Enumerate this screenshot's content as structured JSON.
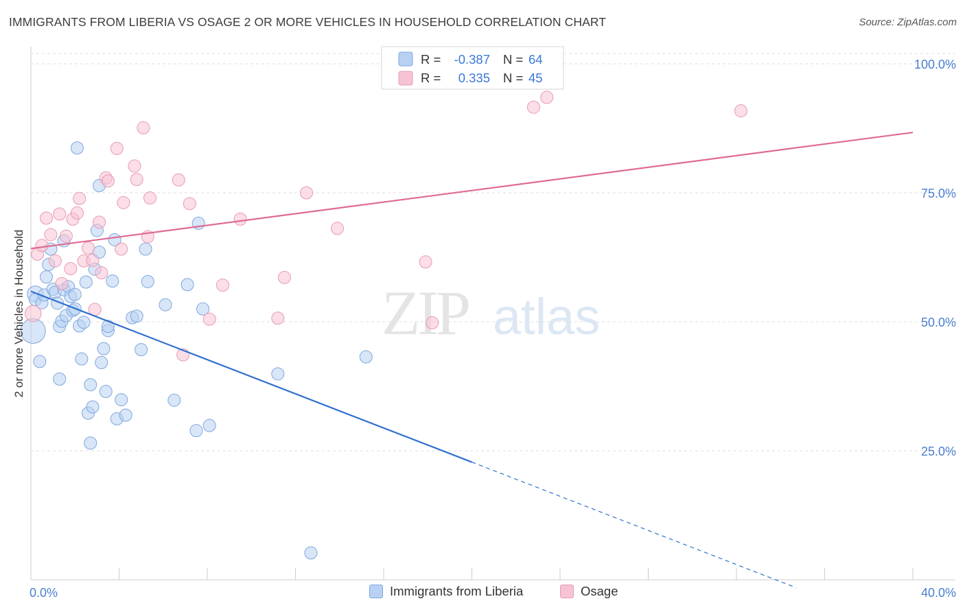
{
  "header": {
    "title": "IMMIGRANTS FROM LIBERIA VS OSAGE 2 OR MORE VEHICLES IN HOUSEHOLD CORRELATION CHART",
    "source": "Source: ZipAtlas.com"
  },
  "watermark": {
    "zip": "ZIP",
    "atlas": "atlas"
  },
  "colors": {
    "blue_fill": "#b8d1f3",
    "blue_stroke": "#7ea6dd",
    "blue_line": "#2f6fcf",
    "pink_fill": "#f7c3d4",
    "pink_stroke": "#e79ab4",
    "pink_line": "#e06a93",
    "axis_label": "#4a7fcf",
    "grid": "#dddddd"
  },
  "legend": {
    "rows": [
      {
        "r_label": "R =",
        "r_value": "-0.387",
        "n_label": "N =",
        "n_value": "64"
      },
      {
        "r_label": "R =",
        "r_value": "0.335",
        "n_label": "N =",
        "n_value": "45"
      }
    ]
  },
  "chart_data": {
    "type": "scatter",
    "xlabel": "",
    "ylabel": "2 or more Vehicles in Household",
    "xlim": [
      0,
      40
    ],
    "ylim": [
      0,
      102
    ],
    "x_tick_labels": [
      {
        "value": 0,
        "label": "0.0%"
      },
      {
        "value": 40,
        "label": "40.0%"
      }
    ],
    "y_tick_labels": [
      {
        "value": 25,
        "label": "25.0%"
      },
      {
        "value": 50,
        "label": "50.0%"
      },
      {
        "value": 75,
        "label": "75.0%"
      },
      {
        "value": 100,
        "label": "100.0%"
      }
    ],
    "grid": true,
    "legend_position": "top-center",
    "series": [
      {
        "name": "Immigrants from Liberia",
        "color": "blue",
        "trend": {
          "x0": 0,
          "y0": 55.9,
          "x1": 20,
          "y1": 22.8,
          "dashed_to_x": 34.7
        },
        "points": [
          {
            "x": 0.1,
            "y": 48.2,
            "r": 2
          },
          {
            "x": 0.2,
            "y": 55.4,
            "r": 1.3
          },
          {
            "x": 0.2,
            "y": 54.3
          },
          {
            "x": 0.4,
            "y": 42.3
          },
          {
            "x": 0.5,
            "y": 53.7
          },
          {
            "x": 0.6,
            "y": 55.2
          },
          {
            "x": 0.7,
            "y": 58.7
          },
          {
            "x": 0.8,
            "y": 61.1
          },
          {
            "x": 0.9,
            "y": 64.1
          },
          {
            "x": 1.0,
            "y": 56.3
          },
          {
            "x": 1.1,
            "y": 55.7
          },
          {
            "x": 1.2,
            "y": 53.6
          },
          {
            "x": 1.3,
            "y": 38.9
          },
          {
            "x": 1.3,
            "y": 49.1
          },
          {
            "x": 1.4,
            "y": 50.1
          },
          {
            "x": 1.5,
            "y": 65.7
          },
          {
            "x": 1.5,
            "y": 56.2
          },
          {
            "x": 1.6,
            "y": 51.2
          },
          {
            "x": 1.7,
            "y": 56.8
          },
          {
            "x": 1.8,
            "y": 54.9
          },
          {
            "x": 1.9,
            "y": 52.2
          },
          {
            "x": 2.0,
            "y": 55.3
          },
          {
            "x": 2.0,
            "y": 52.5
          },
          {
            "x": 2.1,
            "y": 83.7
          },
          {
            "x": 2.2,
            "y": 49.2
          },
          {
            "x": 2.3,
            "y": 42.8
          },
          {
            "x": 2.4,
            "y": 49.9
          },
          {
            "x": 2.5,
            "y": 57.7
          },
          {
            "x": 2.6,
            "y": 32.3
          },
          {
            "x": 2.7,
            "y": 26.5
          },
          {
            "x": 2.7,
            "y": 37.8
          },
          {
            "x": 2.8,
            "y": 33.5
          },
          {
            "x": 2.9,
            "y": 60.2
          },
          {
            "x": 3.0,
            "y": 67.7
          },
          {
            "x": 3.1,
            "y": 63.5
          },
          {
            "x": 3.2,
            "y": 42.1
          },
          {
            "x": 3.1,
            "y": 76.4
          },
          {
            "x": 3.3,
            "y": 44.8
          },
          {
            "x": 3.4,
            "y": 36.5
          },
          {
            "x": 3.5,
            "y": 48.3
          },
          {
            "x": 3.5,
            "y": 49.1
          },
          {
            "x": 3.7,
            "y": 57.9
          },
          {
            "x": 3.8,
            "y": 65.9
          },
          {
            "x": 3.9,
            "y": 31.2
          },
          {
            "x": 4.1,
            "y": 34.9
          },
          {
            "x": 4.3,
            "y": 31.9
          },
          {
            "x": 4.6,
            "y": 50.8
          },
          {
            "x": 4.8,
            "y": 51.1
          },
          {
            "x": 5.0,
            "y": 44.6
          },
          {
            "x": 5.2,
            "y": 64.1
          },
          {
            "x": 5.3,
            "y": 57.8
          },
          {
            "x": 6.1,
            "y": 53.3
          },
          {
            "x": 6.5,
            "y": 34.8
          },
          {
            "x": 7.1,
            "y": 57.2
          },
          {
            "x": 7.5,
            "y": 28.9
          },
          {
            "x": 7.6,
            "y": 69.1
          },
          {
            "x": 7.8,
            "y": 52.5
          },
          {
            "x": 8.1,
            "y": 29.9
          },
          {
            "x": 11.2,
            "y": 39.9
          },
          {
            "x": 12.7,
            "y": 5.2
          },
          {
            "x": 15.2,
            "y": 43.2
          }
        ]
      },
      {
        "name": "Osage",
        "color": "pink",
        "trend": {
          "x0": 0,
          "y0": 64.2,
          "x1": 40,
          "y1": 86.7
        },
        "points": [
          {
            "x": 0.1,
            "y": 51.6,
            "r": 1.3
          },
          {
            "x": 0.3,
            "y": 63.1
          },
          {
            "x": 0.5,
            "y": 64.8
          },
          {
            "x": 0.7,
            "y": 70.1
          },
          {
            "x": 0.9,
            "y": 66.9
          },
          {
            "x": 1.1,
            "y": 61.8
          },
          {
            "x": 1.3,
            "y": 70.9
          },
          {
            "x": 1.4,
            "y": 57.4
          },
          {
            "x": 1.6,
            "y": 66.6
          },
          {
            "x": 1.8,
            "y": 60.3
          },
          {
            "x": 1.9,
            "y": 69.9
          },
          {
            "x": 2.1,
            "y": 71.1
          },
          {
            "x": 2.2,
            "y": 73.9
          },
          {
            "x": 2.4,
            "y": 61.8
          },
          {
            "x": 2.6,
            "y": 64.3
          },
          {
            "x": 2.8,
            "y": 61.9
          },
          {
            "x": 2.9,
            "y": 52.4
          },
          {
            "x": 3.1,
            "y": 69.3
          },
          {
            "x": 3.2,
            "y": 59.5
          },
          {
            "x": 3.4,
            "y": 77.9
          },
          {
            "x": 3.5,
            "y": 77.3
          },
          {
            "x": 3.9,
            "y": 83.6
          },
          {
            "x": 4.1,
            "y": 64.1
          },
          {
            "x": 4.2,
            "y": 73.1
          },
          {
            "x": 4.7,
            "y": 80.2
          },
          {
            "x": 4.8,
            "y": 77.6
          },
          {
            "x": 5.1,
            "y": 87.6
          },
          {
            "x": 5.3,
            "y": 66.5
          },
          {
            "x": 5.4,
            "y": 74.0
          },
          {
            "x": 6.7,
            "y": 77.5
          },
          {
            "x": 6.9,
            "y": 43.6
          },
          {
            "x": 7.2,
            "y": 72.9
          },
          {
            "x": 8.1,
            "y": 50.5
          },
          {
            "x": 8.7,
            "y": 57.1
          },
          {
            "x": 9.5,
            "y": 69.9
          },
          {
            "x": 11.2,
            "y": 50.7
          },
          {
            "x": 11.5,
            "y": 58.6
          },
          {
            "x": 12.5,
            "y": 75.0
          },
          {
            "x": 13.9,
            "y": 68.1
          },
          {
            "x": 17.9,
            "y": 61.6
          },
          {
            "x": 18.2,
            "y": 49.8
          },
          {
            "x": 22.8,
            "y": 91.6
          },
          {
            "x": 23.4,
            "y": 93.5
          },
          {
            "x": 32.2,
            "y": 90.9
          }
        ]
      }
    ]
  }
}
